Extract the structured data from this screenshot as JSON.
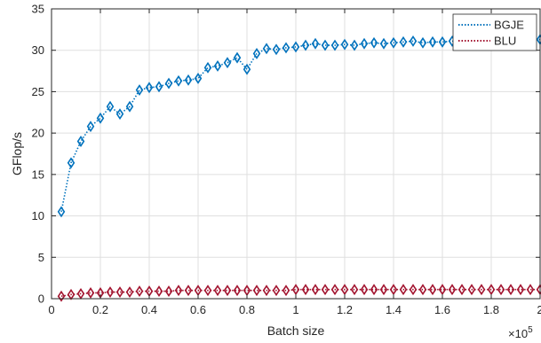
{
  "chart_data": {
    "type": "line",
    "title": "",
    "xlabel": "Batch size",
    "ylabel": "GFlop/s",
    "x_exponent_label": "×10",
    "x_exponent_power": "5",
    "xlim": [
      0,
      2
    ],
    "ylim": [
      0,
      35
    ],
    "xticks": [
      0,
      0.2,
      0.4,
      0.6,
      0.8,
      1,
      1.2,
      1.4,
      1.6,
      1.8,
      2
    ],
    "xtick_labels": [
      "0",
      "0.2",
      "0.4",
      "0.6",
      "0.8",
      "1",
      "1.2",
      "1.4",
      "1.6",
      "1.8",
      "2"
    ],
    "yticks": [
      0,
      5,
      10,
      15,
      20,
      25,
      30,
      35
    ],
    "ytick_labels": [
      "0",
      "5",
      "10",
      "15",
      "20",
      "25",
      "30",
      "35"
    ],
    "grid": true,
    "legend_position": "top-right",
    "x": [
      0.04,
      0.08,
      0.12,
      0.16,
      0.2,
      0.24,
      0.28,
      0.32,
      0.36,
      0.4,
      0.44,
      0.48,
      0.52,
      0.56,
      0.6,
      0.64,
      0.68,
      0.72,
      0.76,
      0.8,
      0.84,
      0.88,
      0.92,
      0.96,
      1.0,
      1.04,
      1.08,
      1.12,
      1.16,
      1.2,
      1.24,
      1.28,
      1.32,
      1.36,
      1.4,
      1.44,
      1.48,
      1.52,
      1.56,
      1.6,
      1.64,
      1.68,
      1.72,
      1.76,
      1.8,
      1.84,
      1.88,
      1.92,
      1.96,
      2.0
    ],
    "series": [
      {
        "name": "BGJE",
        "color": "#0072BD",
        "values": [
          10.5,
          16.4,
          19.0,
          20.8,
          21.8,
          23.2,
          22.3,
          23.2,
          25.2,
          25.5,
          25.6,
          26.0,
          26.3,
          26.4,
          26.6,
          27.9,
          28.1,
          28.5,
          29.1,
          27.7,
          29.6,
          30.2,
          30.1,
          30.3,
          30.4,
          30.6,
          30.8,
          30.6,
          30.6,
          30.7,
          30.6,
          30.8,
          30.9,
          30.8,
          30.9,
          31.0,
          31.1,
          30.9,
          31.0,
          31.0,
          31.1,
          31.0,
          31.1,
          31.2,
          31.1,
          31.1,
          31.2,
          31.2,
          31.3,
          31.3
        ]
      },
      {
        "name": "BLU",
        "color": "#A2142F",
        "values": [
          0.3,
          0.5,
          0.6,
          0.7,
          0.7,
          0.8,
          0.8,
          0.8,
          0.9,
          0.9,
          0.9,
          0.9,
          1.0,
          1.0,
          1.0,
          1.0,
          1.0,
          1.0,
          1.0,
          1.0,
          1.0,
          1.0,
          1.0,
          1.0,
          1.1,
          1.1,
          1.1,
          1.1,
          1.1,
          1.1,
          1.1,
          1.1,
          1.1,
          1.1,
          1.1,
          1.1,
          1.1,
          1.1,
          1.1,
          1.1,
          1.1,
          1.1,
          1.1,
          1.1,
          1.1,
          1.1,
          1.1,
          1.1,
          1.1,
          1.1
        ]
      }
    ]
  }
}
